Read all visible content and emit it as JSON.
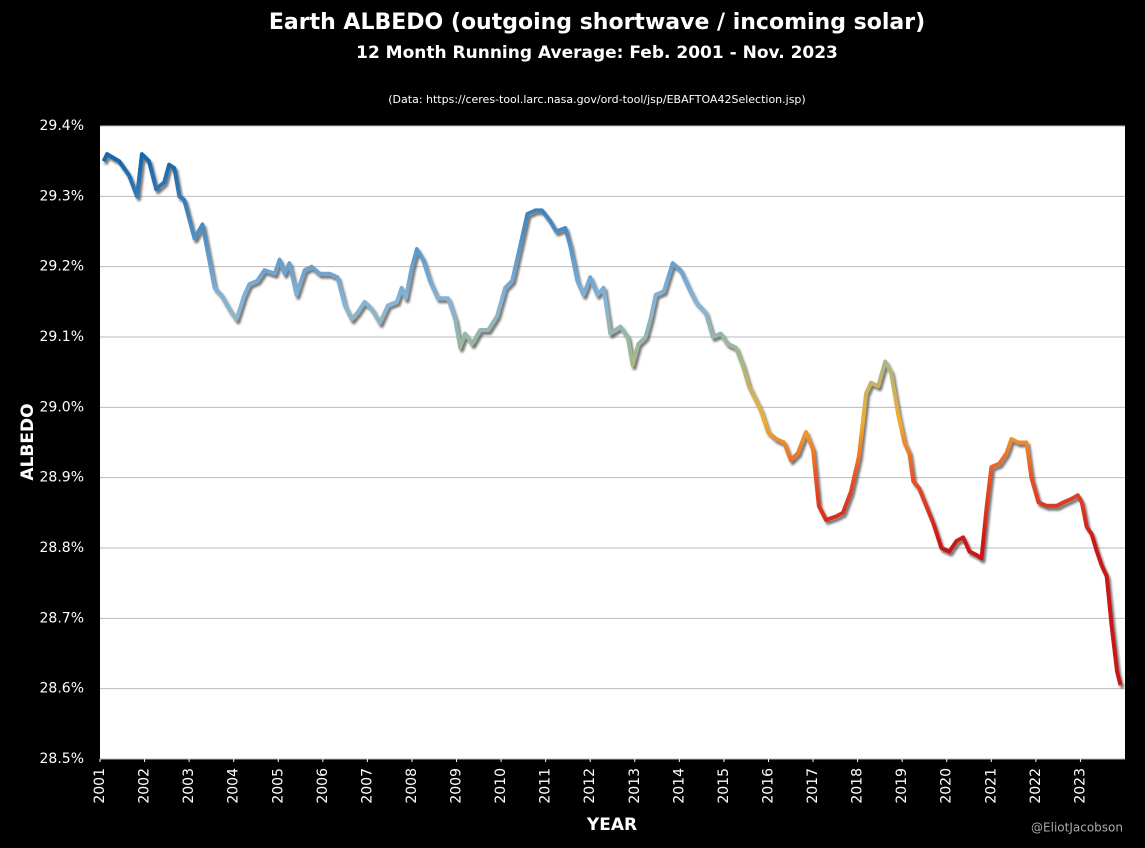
{
  "chart_data": {
    "type": "line",
    "title": "Earth ALBEDO (outgoing shortwave / incoming solar)",
    "subtitle": "12 Month Running Average: Feb. 2001 - Nov. 2023",
    "source": "(Data: https://ceres-tool.larc.nasa.gov/ord-tool/jsp/EBAFTOA42Selection.jsp)",
    "x_label": "YEAR",
    "y_label": "ALBEDO",
    "credit": "@EliotJacobson",
    "x": [
      2001.08,
      2001.16,
      2001.43,
      2001.65,
      2001.83,
      2001.94,
      2002.1,
      2002.26,
      2002.44,
      2002.55,
      2002.67,
      2002.78,
      2002.89,
      2003.12,
      2003.3,
      2003.45,
      2003.57,
      2003.72,
      2003.9,
      2004.06,
      2004.24,
      2004.35,
      2004.53,
      2004.69,
      2004.92,
      2005.03,
      2005.14,
      2005.25,
      2005.41,
      2005.59,
      2005.75,
      2005.93,
      2006.15,
      2006.33,
      2006.49,
      2006.65,
      2006.78,
      2006.94,
      2007.1,
      2007.28,
      2007.46,
      2007.66,
      2007.77,
      2007.86,
      2008.0,
      2008.11,
      2008.25,
      2008.4,
      2008.58,
      2008.81,
      2008.97,
      2009.08,
      2009.19,
      2009.35,
      2009.53,
      2009.71,
      2009.91,
      2010.09,
      2010.25,
      2010.43,
      2010.59,
      2010.77,
      2010.92,
      2011.1,
      2011.24,
      2011.44,
      2011.55,
      2011.71,
      2011.85,
      2012.0,
      2012.16,
      2012.3,
      2012.45,
      2012.68,
      2012.84,
      2012.95,
      2013.08,
      2013.24,
      2013.35,
      2013.47,
      2013.65,
      2013.85,
      2014.03,
      2014.21,
      2014.37,
      2014.59,
      2014.75,
      2014.93,
      2015.09,
      2015.27,
      2015.42,
      2015.56,
      2015.72,
      2015.83,
      2015.99,
      2016.17,
      2016.35,
      2016.5,
      2016.66,
      2016.84,
      2017.0,
      2017.13,
      2017.29,
      2017.52,
      2017.67,
      2017.85,
      2018.03,
      2018.19,
      2018.3,
      2018.46,
      2018.62,
      2018.75,
      2018.91,
      2019.05,
      2019.16,
      2019.25,
      2019.38,
      2019.54,
      2019.7,
      2019.88,
      2020.06,
      2020.22,
      2020.37,
      2020.51,
      2020.67,
      2020.78,
      2020.89,
      2021.0,
      2021.18,
      2021.34,
      2021.45,
      2021.61,
      2021.79,
      2021.9,
      2022.06,
      2022.24,
      2022.47,
      2022.62,
      2022.8,
      2022.94,
      2023.03,
      2023.14,
      2023.25,
      2023.37,
      2023.48,
      2023.59,
      2023.7,
      2023.82,
      2023.9
    ],
    "values": [
      29.35,
      29.36,
      29.35,
      29.33,
      29.3,
      29.36,
      29.35,
      29.31,
      29.32,
      29.345,
      29.34,
      29.3,
      29.295,
      29.24,
      29.26,
      29.21,
      29.17,
      29.16,
      29.14,
      29.125,
      29.16,
      29.175,
      29.18,
      29.195,
      29.19,
      29.21,
      29.19,
      29.205,
      29.16,
      29.195,
      29.2,
      29.19,
      29.19,
      29.185,
      29.145,
      29.125,
      29.135,
      29.15,
      29.14,
      29.12,
      29.145,
      29.15,
      29.17,
      29.155,
      29.2,
      29.225,
      29.21,
      29.18,
      29.155,
      29.155,
      29.125,
      29.085,
      29.105,
      29.09,
      29.11,
      29.11,
      29.13,
      29.17,
      29.18,
      29.23,
      29.275,
      29.28,
      29.28,
      29.265,
      29.25,
      29.255,
      29.23,
      29.18,
      29.16,
      29.185,
      29.16,
      29.17,
      29.105,
      29.115,
      29.1,
      29.06,
      29.09,
      29.1,
      29.125,
      29.16,
      29.165,
      29.205,
      29.195,
      29.17,
      29.15,
      29.135,
      29.1,
      29.105,
      29.09,
      29.085,
      29.06,
      29.03,
      29.01,
      28.995,
      28.965,
      28.955,
      28.95,
      28.925,
      28.935,
      28.965,
      28.94,
      28.86,
      28.84,
      28.845,
      28.85,
      28.88,
      28.93,
      29.02,
      29.035,
      29.03,
      29.065,
      29.05,
      28.99,
      28.95,
      28.935,
      28.895,
      28.885,
      28.86,
      28.835,
      28.8,
      28.795,
      28.81,
      28.815,
      28.795,
      28.79,
      28.785,
      28.855,
      28.915,
      28.92,
      28.935,
      28.955,
      28.95,
      28.95,
      28.9,
      28.865,
      28.86,
      28.86,
      28.865,
      28.87,
      28.875,
      28.865,
      28.83,
      28.82,
      28.795,
      28.775,
      28.76,
      28.69,
      28.625,
      28.605
    ],
    "color_scale": [
      {
        "value": 29.35,
        "color": "#1767ab"
      },
      {
        "value": 29.15,
        "color": "#86b4d8"
      },
      {
        "value": 29.08,
        "color": "#9db894"
      },
      {
        "value": 28.98,
        "color": "#f0ae2e"
      },
      {
        "value": 28.9,
        "color": "#e5522a"
      },
      {
        "value": 28.8,
        "color": "#cc1212"
      }
    ],
    "xlim": [
      2001,
      2024
    ],
    "xticks": [
      2001,
      2002,
      2003,
      2004,
      2005,
      2006,
      2007,
      2008,
      2009,
      2010,
      2011,
      2012,
      2013,
      2014,
      2015,
      2016,
      2017,
      2018,
      2019,
      2020,
      2021,
      2022,
      2023
    ],
    "ylim": [
      28.5,
      29.4
    ],
    "yticks": [
      {
        "value": 28.5,
        "label": "28.5%"
      },
      {
        "value": 28.6,
        "label": "28.6%"
      },
      {
        "value": 28.7,
        "label": "28.7%"
      },
      {
        "value": 28.8,
        "label": "28.8%"
      },
      {
        "value": 28.9,
        "label": "28.9%"
      },
      {
        "value": 29.0,
        "label": "29.0%"
      },
      {
        "value": 29.1,
        "label": "29.1%"
      },
      {
        "value": 29.2,
        "label": "29.2%"
      },
      {
        "value": 29.3,
        "label": "29.3%"
      },
      {
        "value": 29.4,
        "label": "29.4%"
      }
    ],
    "grid": true
  }
}
